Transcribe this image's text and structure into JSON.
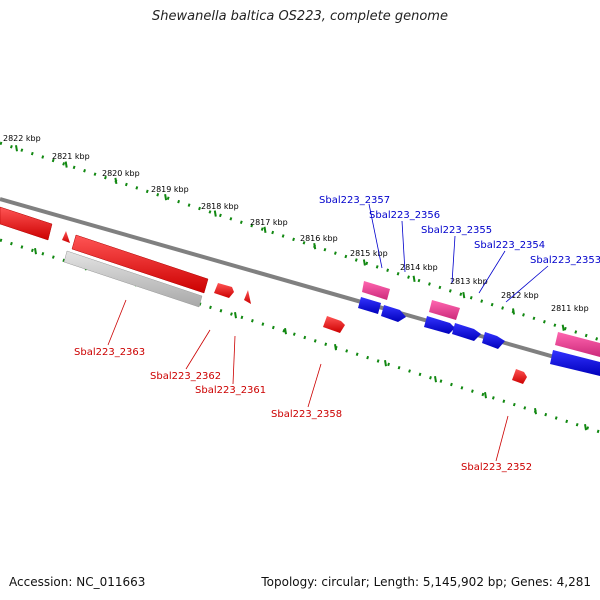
{
  "title": "Shewanella baltica OS223, complete genome",
  "footer": {
    "accession": "Accession: NC_011663",
    "summary": "Topology: circular; Length: 5,145,902 bp; Genes: 4,281"
  },
  "scale_labels": [
    "2822 kbp",
    "2821 kbp",
    "2820 kbp",
    "2819 kbp",
    "2818 kbp",
    "2817 kbp",
    "2816 kbp",
    "2815 kbp",
    "2814 kbp",
    "2813 kbp",
    "2812 kbp",
    "2811 kbp"
  ],
  "genes_forward": [
    "Sbal223_2357",
    "Sbal223_2356",
    "Sbal223_2355",
    "Sbal223_2354",
    "Sbal223_2353"
  ],
  "genes_reverse": [
    "Sbal223_2363",
    "Sbal223_2362",
    "Sbal223_2361",
    "Sbal223_2358",
    "Sbal223_2352"
  ],
  "colors": {
    "forward_label": "#0000cc",
    "reverse_label": "#cc0000",
    "forward_gene": "#0000dd",
    "forward_rna": "#e0388c",
    "reverse_gene": "#ee0000",
    "pseudogene": "#bdbdbd",
    "backbone": "#808080",
    "ticks": "#118811",
    "scale_text": "#000000"
  }
}
